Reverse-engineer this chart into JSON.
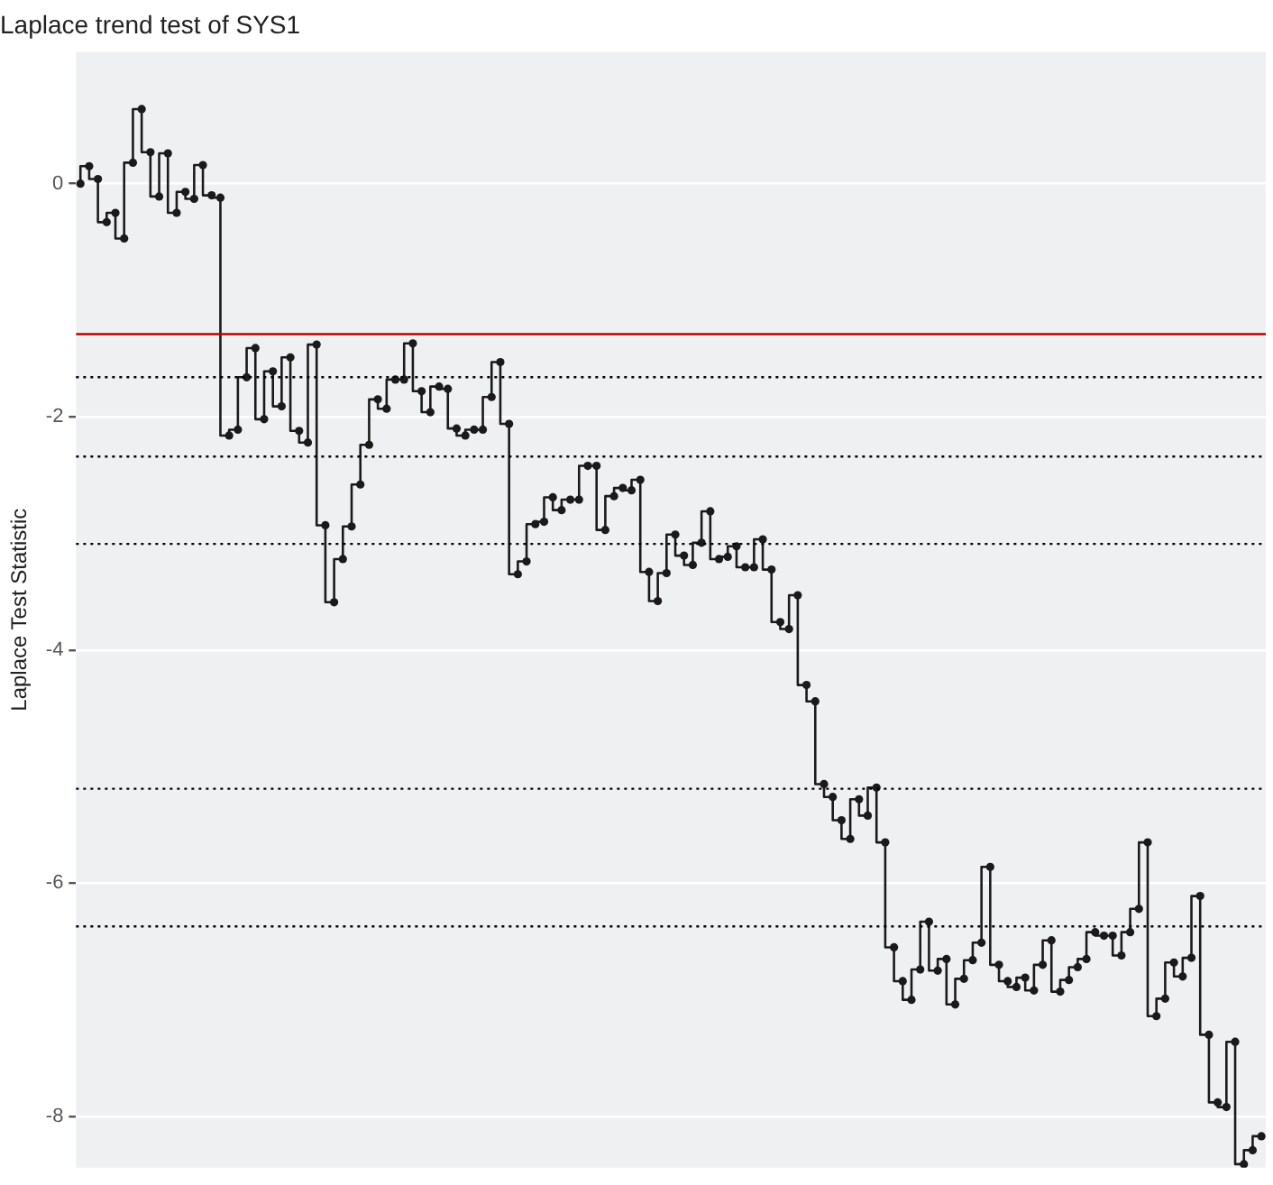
{
  "chart_data": {
    "type": "step",
    "title": "Laplace trend test of SYS1",
    "ylabel": "Laplace Test Statistic",
    "categories": [
      null,
      null,
      null,
      null,
      null,
      null,
      null,
      null,
      null,
      null,
      null,
      null,
      null,
      null,
      null,
      null,
      null,
      null,
      null,
      null,
      null,
      null,
      null,
      null,
      null,
      null,
      null,
      null,
      null,
      null,
      null,
      null,
      null,
      null,
      null,
      null,
      null,
      null,
      null,
      null,
      null,
      null,
      null,
      null,
      null,
      null,
      null,
      null,
      null,
      null,
      null,
      null,
      null,
      null,
      null,
      null,
      null,
      null,
      null,
      null,
      null,
      null,
      null,
      null,
      null,
      null,
      null,
      null,
      null,
      null,
      null,
      null,
      null,
      null,
      null,
      null,
      null,
      null,
      null,
      null,
      null,
      null,
      null,
      null,
      null,
      null,
      null,
      null,
      null,
      null,
      null,
      null,
      null,
      null,
      null,
      null,
      null,
      null,
      null,
      null,
      null,
      null,
      null,
      null,
      null,
      null,
      null,
      null,
      null,
      null,
      null,
      null,
      null,
      null,
      null,
      null,
      null,
      null,
      null,
      null,
      null,
      null,
      null,
      null,
      null,
      null,
      null,
      null,
      null,
      null,
      null,
      null,
      null,
      null,
      null,
      null
    ],
    "values": [
      0.0,
      0.15,
      0.04,
      -0.33,
      -0.25,
      -0.47,
      0.18,
      0.64,
      0.27,
      -0.11,
      0.26,
      -0.25,
      -0.07,
      -0.13,
      0.16,
      -0.1,
      -0.12,
      -2.16,
      -2.11,
      -1.66,
      -1.41,
      -2.02,
      -1.61,
      -1.91,
      -1.49,
      -2.12,
      -2.22,
      -1.38,
      -2.93,
      -3.59,
      -3.22,
      -2.94,
      -2.58,
      -2.24,
      -1.85,
      -1.93,
      -1.68,
      -1.68,
      -1.37,
      -1.78,
      -1.96,
      -1.74,
      -1.76,
      -2.1,
      -2.16,
      -2.11,
      -2.11,
      -1.83,
      -1.53,
      -2.06,
      -3.35,
      -3.24,
      -2.92,
      -2.9,
      -2.69,
      -2.8,
      -2.71,
      -2.71,
      -2.42,
      -2.42,
      -2.97,
      -2.68,
      -2.61,
      -2.63,
      -2.54,
      -3.33,
      -3.58,
      -3.34,
      -3.01,
      -3.19,
      -3.27,
      -3.08,
      -2.81,
      -3.22,
      -3.2,
      -3.11,
      -3.29,
      -3.29,
      -3.05,
      -3.31,
      -3.76,
      -3.82,
      -3.53,
      -4.3,
      -4.44,
      -5.15,
      -5.26,
      -5.46,
      -5.62,
      -5.28,
      -5.42,
      -5.18,
      -5.65,
      -6.55,
      -6.84,
      -7.0,
      -6.74,
      -6.33,
      -6.75,
      -6.65,
      -7.04,
      -6.82,
      -6.66,
      -6.51,
      -5.86,
      -6.7,
      -6.84,
      -6.89,
      -6.81,
      -6.92,
      -6.7,
      -6.49,
      -6.93,
      -6.83,
      -6.72,
      -6.65,
      -6.42,
      -6.45,
      -6.45,
      -6.62,
      -6.42,
      -6.22,
      -5.65,
      -7.14,
      -6.99,
      -6.68,
      -6.8,
      -6.64,
      -6.11,
      -7.3,
      -7.88,
      -7.92,
      -7.36,
      -8.41,
      -8.29,
      -8.17
    ],
    "color": "#1a1a1a",
    "marker": "circle",
    "line_style": "solid",
    "ylim": [
      -8.44,
      1.13
    ],
    "yticks": [
      0,
      -2,
      -4,
      -6,
      -8
    ],
    "grid": "y",
    "legend": false,
    "tick_labels": "y",
    "ref_lines": [
      {
        "axis": "y",
        "value": -1.29,
        "color": "#c00000",
        "line_style": "solid"
      },
      {
        "axis": "y",
        "value": -1.66,
        "color": "#000000",
        "line_style": "dotted"
      },
      {
        "axis": "y",
        "value": -2.34,
        "color": "#000000",
        "line_style": "dotted"
      },
      {
        "axis": "y",
        "value": -3.09,
        "color": "#000000",
        "line_style": "dotted"
      },
      {
        "axis": "y",
        "value": -5.19,
        "color": "#000000",
        "line_style": "dotted"
      },
      {
        "axis": "y",
        "value": -6.37,
        "color": "#000000",
        "line_style": "dotted"
      }
    ]
  }
}
